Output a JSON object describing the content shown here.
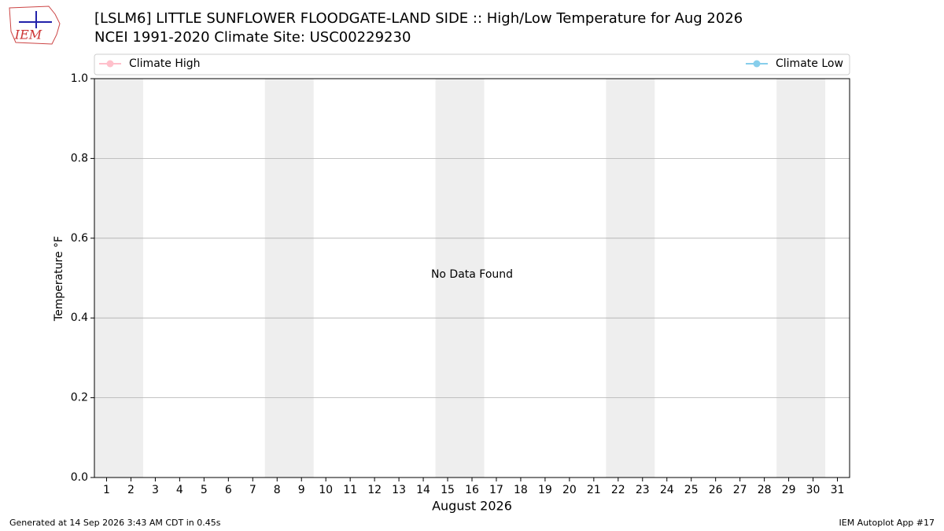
{
  "logo_text": "IEM",
  "footer_left": "Generated at 14 Sep 2026 3:43 AM CDT in 0.45s",
  "footer_right": "IEM Autoplot App #17",
  "chart_data": {
    "type": "line",
    "title": "[LSLM6] LITTLE SUNFLOWER FLOODGATE-LAND SIDE :: High/Low Temperature for Aug 2026",
    "subtitle": "NCEI 1991-2020 Climate Site: USC00229230",
    "xlabel": "August 2026",
    "ylabel": "Temperature °F",
    "annotation": "No Data Found",
    "x": [
      1,
      2,
      3,
      4,
      5,
      6,
      7,
      8,
      9,
      10,
      11,
      12,
      13,
      14,
      15,
      16,
      17,
      18,
      19,
      20,
      21,
      22,
      23,
      24,
      25,
      26,
      27,
      28,
      29,
      30,
      31
    ],
    "series": [
      {
        "name": "Climate High",
        "color": "#ffc0cb",
        "values": [
          null,
          null,
          null,
          null,
          null,
          null,
          null,
          null,
          null,
          null,
          null,
          null,
          null,
          null,
          null,
          null,
          null,
          null,
          null,
          null,
          null,
          null,
          null,
          null,
          null,
          null,
          null,
          null,
          null,
          null,
          null
        ]
      },
      {
        "name": "Climate Low",
        "color": "#87ceeb",
        "values": [
          null,
          null,
          null,
          null,
          null,
          null,
          null,
          null,
          null,
          null,
          null,
          null,
          null,
          null,
          null,
          null,
          null,
          null,
          null,
          null,
          null,
          null,
          null,
          null,
          null,
          null,
          null,
          null,
          null,
          null,
          null
        ]
      }
    ],
    "xlim": [
      0.5,
      31.5
    ],
    "xticks": [
      1,
      2,
      3,
      4,
      5,
      6,
      7,
      8,
      9,
      10,
      11,
      12,
      13,
      14,
      15,
      16,
      17,
      18,
      19,
      20,
      21,
      22,
      23,
      24,
      25,
      26,
      27,
      28,
      29,
      30,
      31
    ],
    "ylim": [
      0,
      1
    ],
    "yticks": [
      {
        "value": 0,
        "label": "0.0"
      },
      {
        "value": 0.2,
        "label": "0.2"
      },
      {
        "value": 0.4,
        "label": "0.4"
      },
      {
        "value": 0.6,
        "label": "0.6"
      },
      {
        "value": 0.8,
        "label": "0.8"
      },
      {
        "value": 1,
        "label": "1.0"
      }
    ],
    "grid": "y",
    "legend": "top",
    "weekend_spans": [
      [
        0.5,
        2.5
      ],
      [
        7.5,
        9.5
      ],
      [
        14.5,
        16.5
      ],
      [
        21.5,
        23.5
      ],
      [
        28.5,
        30.5
      ]
    ],
    "weekend_color": "#eeeeee"
  }
}
